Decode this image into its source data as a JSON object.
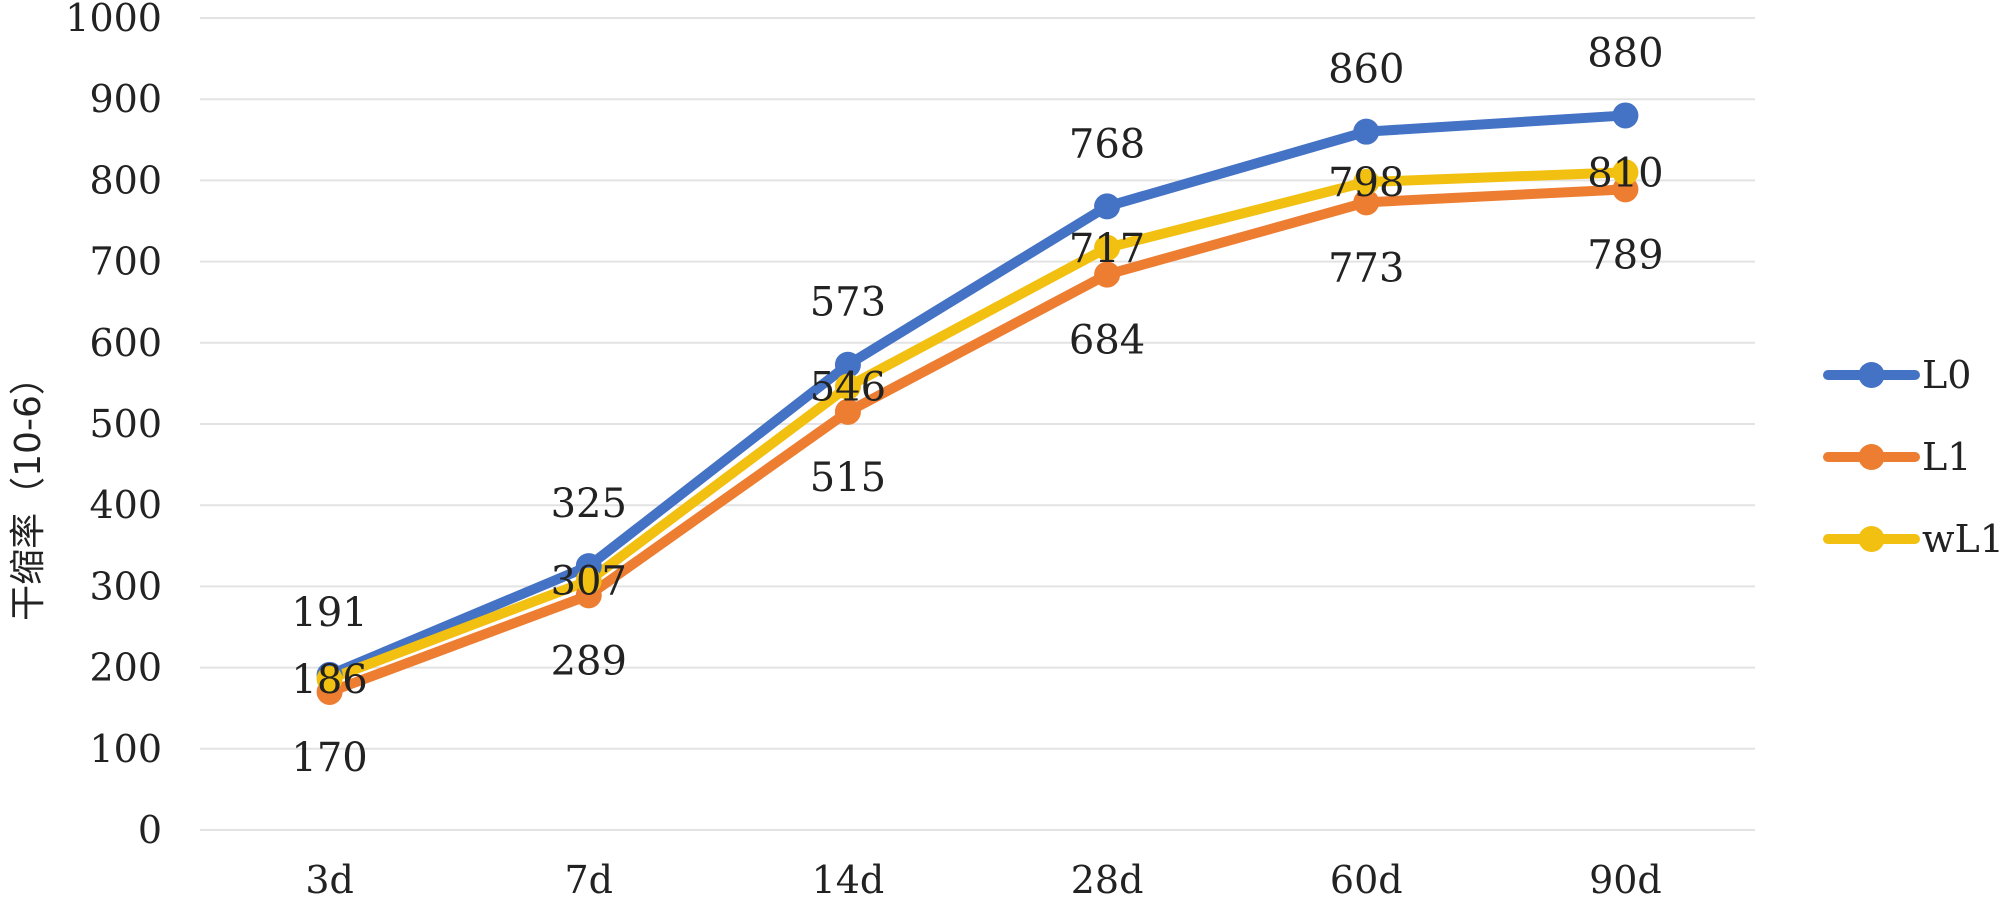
{
  "chart_data": {
    "type": "line",
    "title": "",
    "xlabel": "",
    "ylabel": "干缩率（10-6）",
    "categories": [
      "3d",
      "7d",
      "14d",
      "28d",
      "60d",
      "90d"
    ],
    "ylim": [
      0,
      1000
    ],
    "yticks": [
      0,
      100,
      200,
      300,
      400,
      500,
      600,
      700,
      800,
      900,
      1000
    ],
    "grid": true,
    "legend_position": "right",
    "series": [
      {
        "name": "L0",
        "color": "#4472C4",
        "values": [
          191,
          325,
          573,
          768,
          860,
          880
        ],
        "label_offset": "above"
      },
      {
        "name": "L1",
        "color": "#ED7D31",
        "values": [
          170,
          289,
          515,
          684,
          773,
          789
        ],
        "label_offset": "below"
      },
      {
        "name": "wL1",
        "color": "#F2C010",
        "values": [
          186,
          307,
          546,
          717,
          798,
          810
        ],
        "label_offset": "center"
      }
    ]
  }
}
